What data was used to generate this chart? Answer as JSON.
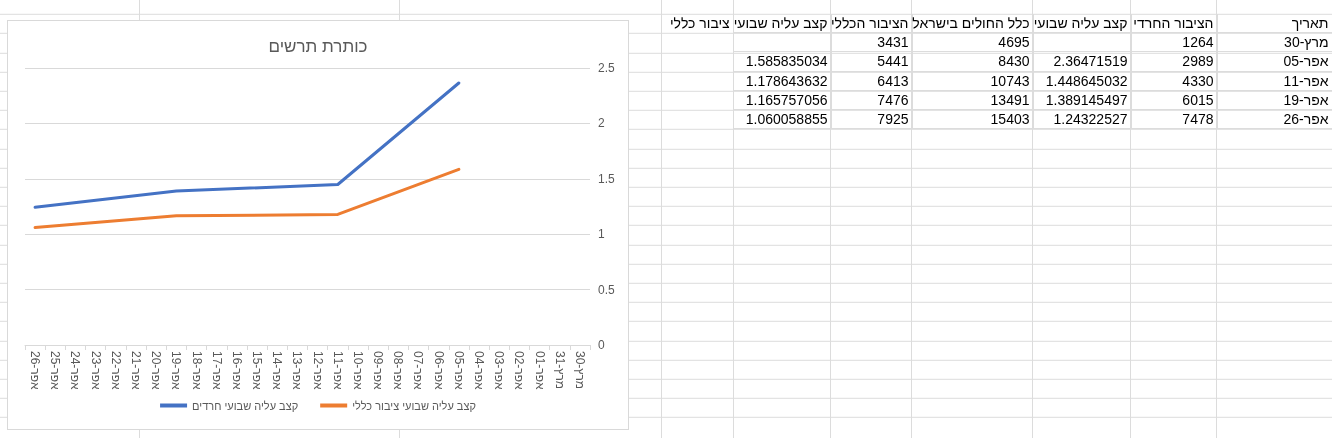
{
  "chart_data": [
    {
      "type": "line",
      "title": "כותרת תרשים",
      "categories": [
        "26-אפר",
        "25-אפר",
        "24-אפר",
        "23-אפר",
        "22-אפר",
        "21-אפר",
        "20-אפר",
        "19-אפר",
        "18-אפר",
        "17-אפר",
        "16-אפר",
        "15-אפר",
        "14-אפר",
        "13-אפר",
        "12-אפר",
        "11-אפר",
        "10-אפר",
        "09-אפר",
        "08-אפר",
        "07-אפר",
        "06-אפר",
        "05-אפר",
        "04-אפר",
        "03-אפר",
        "02-אפר",
        "01-אפר",
        "31-מרץ",
        "30-מרץ"
      ],
      "series": [
        {
          "name": "קצב עליה שבועי חרדים",
          "color": "#4472c4",
          "x": [
            "05-אפר",
            "11-אפר",
            "19-אפר",
            "26-אפר"
          ],
          "values": [
            2.36471519,
            1.448645032,
            1.389145497,
            1.24322527
          ]
        },
        {
          "name": "קצב עליה שבועי ציבור כללי",
          "color": "#ed7d31",
          "x": [
            "05-אפר",
            "11-אפר",
            "19-אפר",
            "26-אפר"
          ],
          "values": [
            1.585835034,
            1.178643632,
            1.165757056,
            1.060058855
          ]
        }
      ],
      "ylim": [
        0,
        2.5
      ],
      "yticks": [
        0,
        0.5,
        1,
        1.5,
        2,
        2.5
      ],
      "grid": "y",
      "legend": "bottom",
      "marker": "none",
      "line_style": "solid"
    },
    {
      "type": "other",
      "ylabel": "תאריך",
      "categories": [
        "30-מרץ",
        "05-אפר",
        "11-אפר",
        "19-אפר",
        "26-אפר"
      ],
      "series": [
        {
          "name": "הציבור החרדי",
          "values": [
            1264,
            2989,
            4330,
            6015,
            7478
          ]
        },
        {
          "name": "קצב עליה שבועי",
          "values": [
            null,
            2.36471519,
            1.448645032,
            1.389145497,
            1.24322527
          ]
        },
        {
          "name": "כלל החולים בישראל",
          "values": [
            4695,
            8430,
            10743,
            13491,
            15403
          ]
        },
        {
          "name": "הציבור הכללי",
          "values": [
            3431,
            5441,
            6413,
            7476,
            7925
          ]
        },
        {
          "name": "קצב עליה שבועי ציבור כללי",
          "values": [
            null,
            1.585835034,
            1.178643632,
            1.165757056,
            1.060058855
          ]
        }
      ],
      "data_labels": true
    }
  ]
}
